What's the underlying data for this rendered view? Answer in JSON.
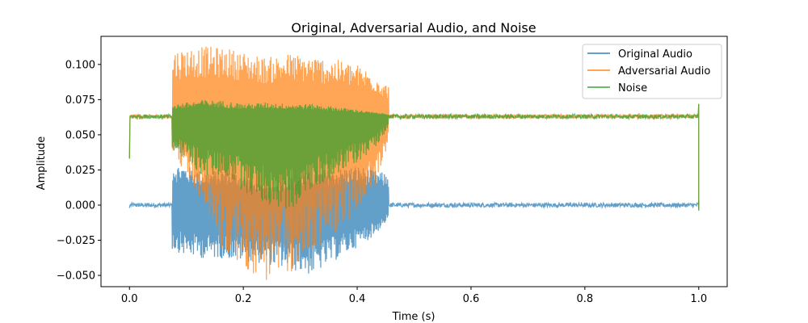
{
  "chart_data": {
    "type": "line",
    "title": "Original, Adversarial Audio, and Noise",
    "xlabel": "Time (s)",
    "ylabel": "Amplitude",
    "xlim": [
      -0.05,
      1.05
    ],
    "ylim": [
      -0.058,
      0.12
    ],
    "xticks": [
      0.0,
      0.2,
      0.4,
      0.6,
      0.8,
      1.0
    ],
    "xtick_labels": [
      "0.0",
      "0.2",
      "0.4",
      "0.6",
      "0.8",
      "1.0"
    ],
    "yticks": [
      -0.05,
      -0.025,
      0.0,
      0.025,
      0.05,
      0.075,
      0.1
    ],
    "ytick_labels": [
      "−0.050",
      "−0.025",
      "0.000",
      "0.025",
      "0.050",
      "0.075",
      "0.100"
    ],
    "grid": false,
    "legend_position": "top-right",
    "series": [
      {
        "name": "Original Audio",
        "color": "#1f77b4",
        "opacity": 0.7,
        "signal": "speech burst between 0.075 s and 0.455 s, near-zero noise elsewhere",
        "baseline": 0.0,
        "envelope": {
          "t": [
            0.075,
            0.1,
            0.13,
            0.17,
            0.2,
            0.24,
            0.28,
            0.32,
            0.36,
            0.4,
            0.43,
            0.455
          ],
          "upper": [
            0.03,
            0.028,
            0.024,
            0.026,
            0.022,
            0.012,
            0.02,
            0.024,
            0.026,
            0.028,
            0.025,
            0.022
          ],
          "lower": [
            -0.032,
            -0.036,
            -0.038,
            -0.038,
            -0.04,
            -0.042,
            -0.046,
            -0.05,
            -0.04,
            -0.03,
            -0.022,
            -0.01
          ]
        }
      },
      {
        "name": "Adversarial Audio",
        "color": "#ff7f0e",
        "opacity": 0.7,
        "signal": "speech burst plus constant 0.063 offset; flat offset elsewhere",
        "baseline": 0.063,
        "envelope": {
          "t": [
            0.075,
            0.1,
            0.13,
            0.17,
            0.2,
            0.24,
            0.28,
            0.32,
            0.36,
            0.4,
            0.43,
            0.455
          ],
          "upper": [
            0.11,
            0.112,
            0.113,
            0.112,
            0.109,
            0.105,
            0.108,
            0.106,
            0.104,
            0.1,
            0.094,
            0.085
          ],
          "lower": [
            0.04,
            0.02,
            0.0,
            -0.04,
            -0.045,
            -0.056,
            -0.05,
            -0.035,
            -0.02,
            -0.005,
            0.01,
            0.045
          ]
        }
      },
      {
        "name": "Noise",
        "color": "#2ca02c",
        "opacity": 0.7,
        "signal": "adversarial perturbation around 0.063 offset",
        "baseline": 0.063,
        "envelope": {
          "t": [
            0.075,
            0.1,
            0.13,
            0.17,
            0.2,
            0.24,
            0.28,
            0.32,
            0.36,
            0.4,
            0.43,
            0.455
          ],
          "upper": [
            0.072,
            0.073,
            0.075,
            0.074,
            0.072,
            0.073,
            0.072,
            0.072,
            0.07,
            0.068,
            0.066,
            0.065
          ],
          "lower": [
            0.04,
            0.03,
            0.02,
            0.02,
            0.01,
            0.0,
            -0.005,
            0.01,
            0.02,
            0.03,
            0.04,
            0.055
          ]
        }
      }
    ]
  }
}
